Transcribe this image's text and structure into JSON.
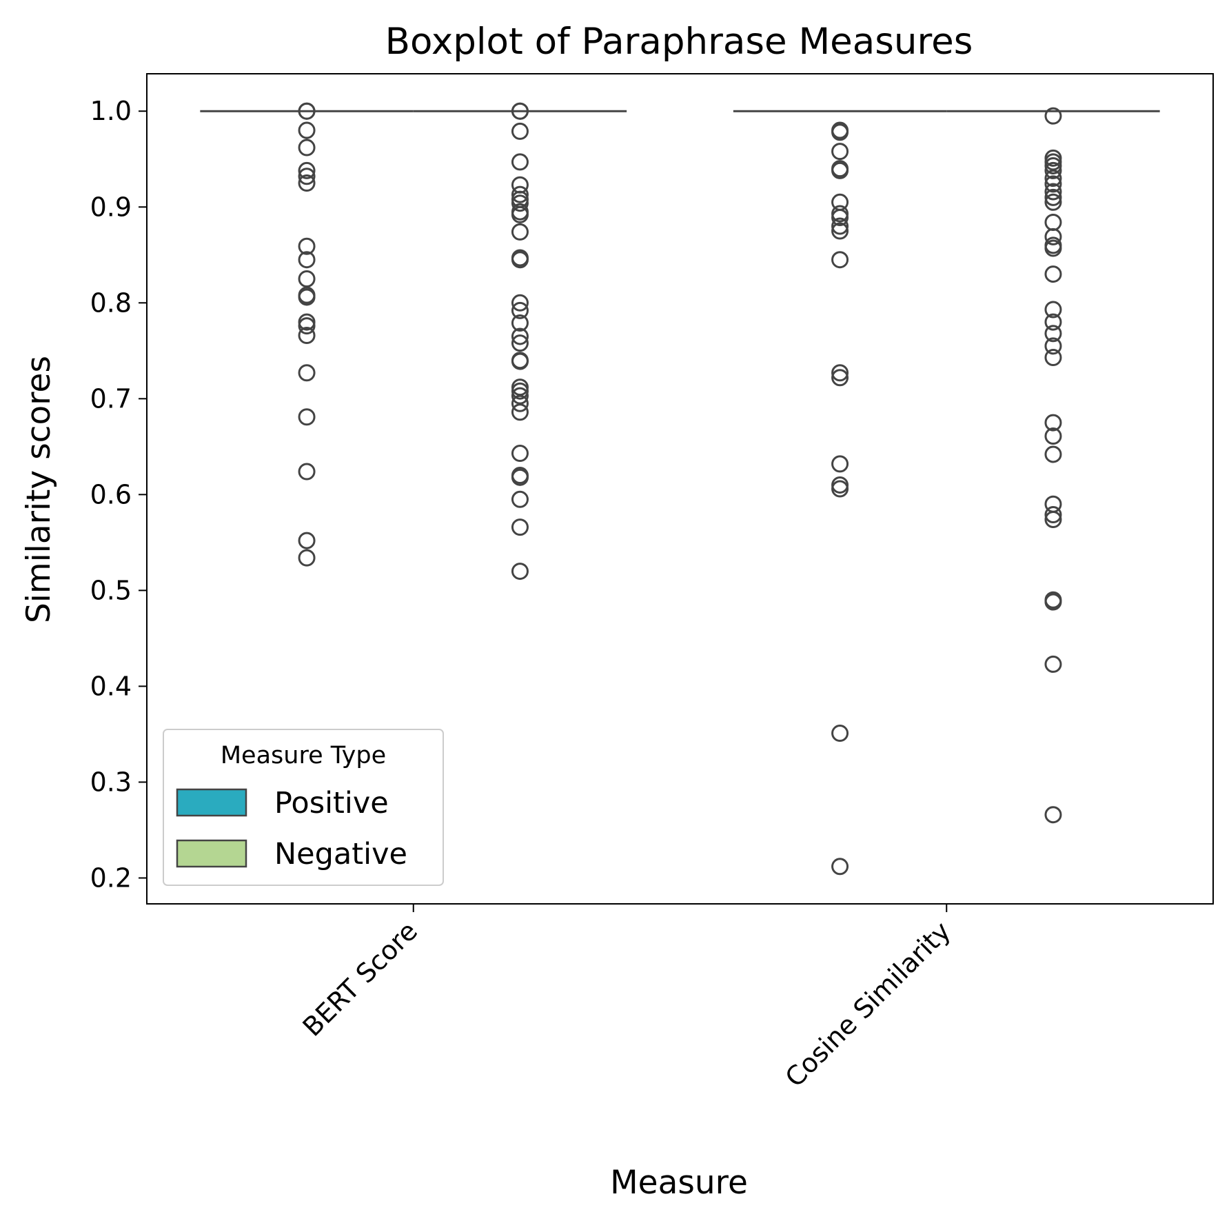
{
  "chart_data": {
    "type": "box",
    "title": "Boxplot of Paraphrase Measures",
    "xlabel": "Measure",
    "ylabel": "Similarity scores",
    "categories": [
      "BERT Score",
      "Cosine Similarity"
    ],
    "ylim": [
      0.173,
      1.039
    ],
    "yticks": [
      "0.2",
      "0.3",
      "0.4",
      "0.5",
      "0.6",
      "0.7",
      "0.8",
      "0.9",
      "1.0"
    ],
    "grid": false,
    "legend": {
      "title": "Measure Type",
      "placement": "lower-left",
      "entries": [
        {
          "label": "Positive",
          "color": "#2aabbf"
        },
        {
          "label": "Negative",
          "color": "#b4d692"
        }
      ]
    },
    "box_line_color": "#444444",
    "series": [
      {
        "name": "Positive",
        "median": [
          1.0,
          1.0
        ],
        "outliers": [
          [
            1.0,
            1.0,
            0.98,
            0.962,
            0.938,
            0.932,
            0.925,
            0.859,
            0.845,
            0.825,
            0.808,
            0.806,
            0.78,
            0.776,
            0.766,
            0.727,
            0.681,
            0.624,
            0.552,
            0.534
          ],
          [
            0.98,
            0.978,
            0.958,
            0.94,
            0.938,
            0.905,
            0.893,
            0.889,
            0.88,
            0.875,
            0.845,
            0.727,
            0.722,
            0.632,
            0.61,
            0.606,
            0.351,
            0.212
          ]
        ]
      },
      {
        "name": "Negative",
        "median": [
          1.0,
          1.0
        ],
        "outliers": [
          [
            1.0,
            1.0,
            0.979,
            0.947,
            0.923,
            0.913,
            0.908,
            0.904,
            0.895,
            0.892,
            0.874,
            0.847,
            0.845,
            0.8,
            0.792,
            0.779,
            0.765,
            0.758,
            0.74,
            0.739,
            0.712,
            0.708,
            0.703,
            0.695,
            0.686,
            0.643,
            0.62,
            0.618,
            0.595,
            0.566,
            0.52
          ],
          [
            0.995,
            0.951,
            0.947,
            0.943,
            0.938,
            0.93,
            0.924,
            0.916,
            0.91,
            0.905,
            0.884,
            0.869,
            0.86,
            0.857,
            0.83,
            0.793,
            0.78,
            0.768,
            0.755,
            0.743,
            0.675,
            0.661,
            0.642,
            0.59,
            0.579,
            0.574,
            0.49,
            0.488,
            0.423,
            0.266
          ]
        ]
      }
    ]
  }
}
